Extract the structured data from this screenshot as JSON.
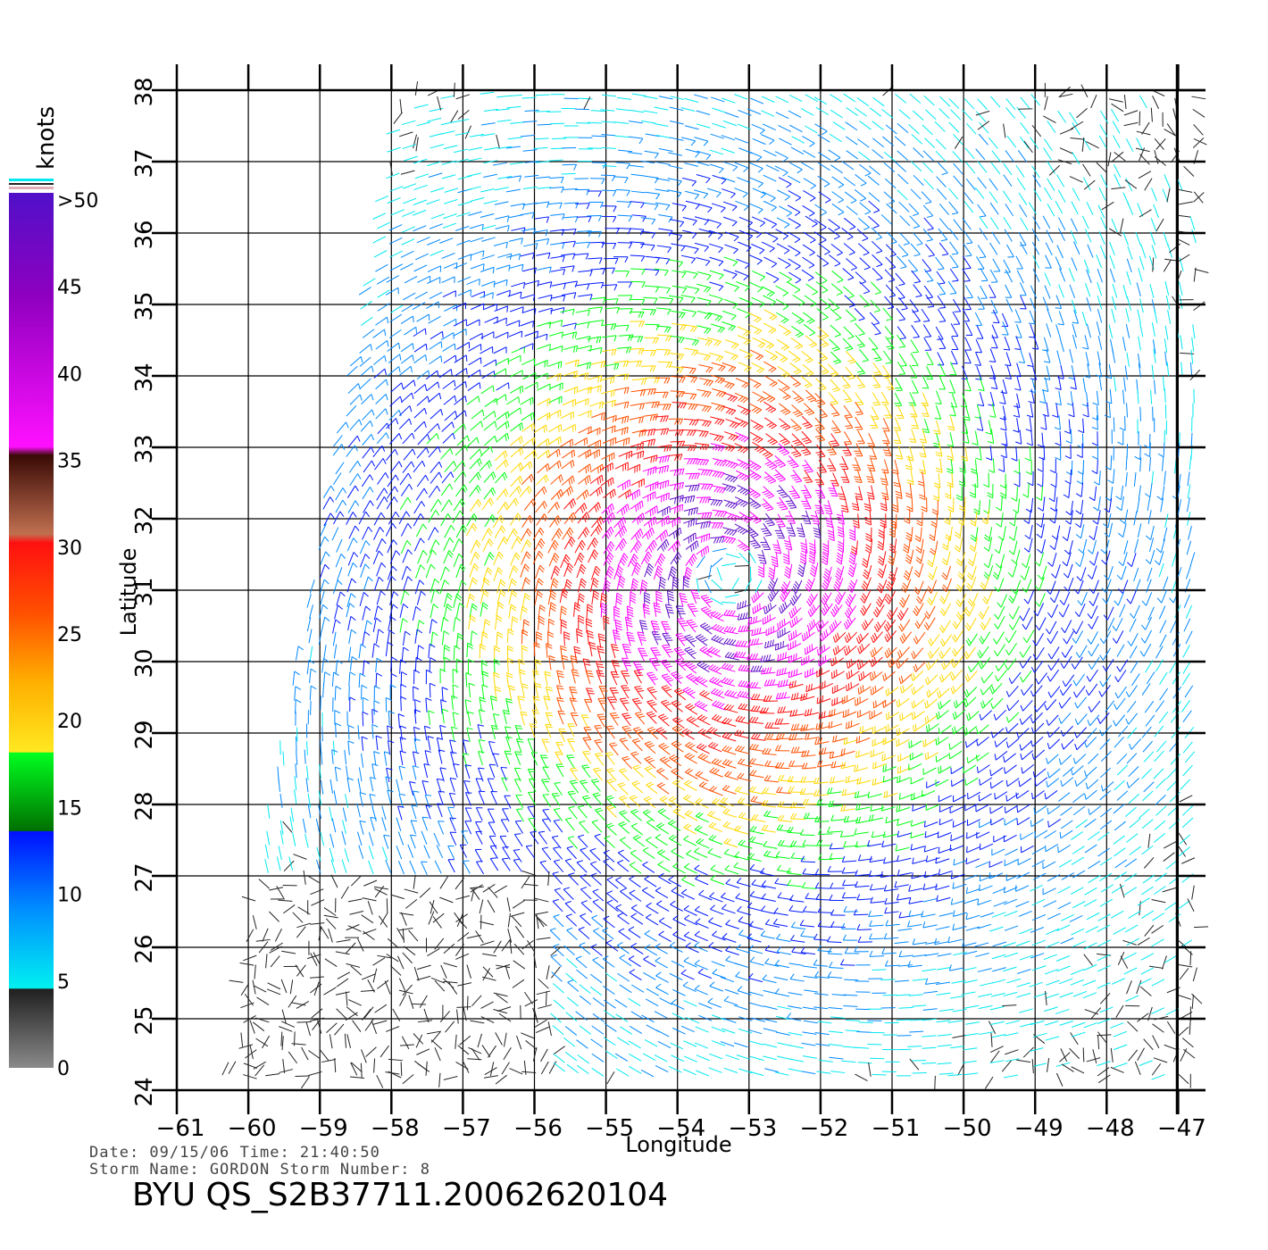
{
  "map": {
    "lon_ticks": [
      -61,
      -60,
      -59,
      -58,
      -57,
      -56,
      -55,
      -54,
      -53,
      -52,
      -51,
      -50,
      -49,
      -48,
      -47
    ],
    "lat_ticks": [
      24,
      25,
      26,
      27,
      28,
      29,
      30,
      31,
      32,
      33,
      34,
      35,
      36,
      37,
      38
    ],
    "xlabel": "Longitude",
    "ylabel": "Latitude",
    "storm_center": {
      "lon": -53.3,
      "lat": 31.2
    },
    "wind_field": "cyclonic wind barbs; calm (0-5 kt) in south-west, increasing to >50 kt near storm center"
  },
  "colorbar": {
    "unit": "knots",
    "labels": [
      {
        "text": ">50",
        "value": 50
      },
      {
        "text": "45",
        "value": 45
      },
      {
        "text": "40",
        "value": 40
      },
      {
        "text": "35",
        "value": 35
      },
      {
        "text": "30",
        "value": 30
      },
      {
        "text": "25",
        "value": 25
      },
      {
        "text": "20",
        "value": 20
      },
      {
        "text": "15",
        "value": 15
      },
      {
        "text": "10",
        "value": 10
      },
      {
        "text": "5",
        "value": 5
      },
      {
        "text": "0",
        "value": 0
      }
    ],
    "colors": {
      "0": "#8a8a8a",
      "5": "#00e8f0",
      "10": "#0088ff",
      "15": "#0018ff",
      "20": "#00ff10",
      "25": "#ffd800",
      "30": "#ff5000",
      "35": "#ff1010",
      "40": "#5a1a10",
      "45": "#ff00ff",
      "50": "#6010c8"
    }
  },
  "footer": {
    "line1": "Date: 09/15/06   Time: 21:40:50",
    "line2": "Storm Name: GORDON   Storm Number: 8",
    "product": "BYU QS_S2B37711.20062620104"
  }
}
